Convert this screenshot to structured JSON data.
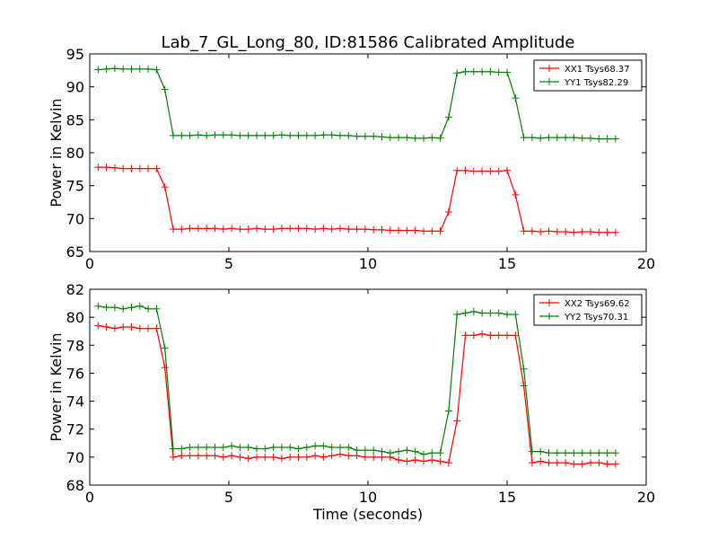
{
  "figure_title": "Lab_7_GL_Long_80, ID:81586 Calibrated Amplitude",
  "colors": {
    "XX": "#ff0000",
    "YY": "#008000",
    "axes": "#000000",
    "background": "#ffffff"
  },
  "chart_data": [
    {
      "type": "line",
      "title": "Lab_7_GL_Long_80, ID:81586 Calibrated Amplitude",
      "xlabel": "",
      "ylabel": "Power in Kelvin",
      "xlim": [
        0,
        20
      ],
      "ylim": [
        65,
        95
      ],
      "xticks": [
        0,
        5,
        10,
        15,
        20
      ],
      "yticks": [
        65,
        70,
        75,
        80,
        85,
        90,
        95
      ],
      "grid": false,
      "legend_position": "top-right",
      "x": [
        0.3,
        0.6,
        0.9,
        1.2,
        1.5,
        1.8,
        2.1,
        2.4,
        2.7,
        3.0,
        3.3,
        3.6,
        3.9,
        4.2,
        4.5,
        4.8,
        5.1,
        5.4,
        5.7,
        6.0,
        6.3,
        6.6,
        6.9,
        7.2,
        7.5,
        7.8,
        8.1,
        8.4,
        8.7,
        9.0,
        9.3,
        9.6,
        9.9,
        10.2,
        10.5,
        10.8,
        11.1,
        11.4,
        11.7,
        12.0,
        12.3,
        12.6,
        12.9,
        13.2,
        13.5,
        13.8,
        14.1,
        14.4,
        14.7,
        15.0,
        15.3,
        15.6,
        15.9,
        16.2,
        16.5,
        16.8,
        17.1,
        17.4,
        17.7,
        18.0,
        18.3,
        18.6,
        18.9
      ],
      "series": [
        {
          "name": "XX1 Tsys68.37",
          "color": "#ff0000",
          "values": [
            77.8,
            77.8,
            77.7,
            77.6,
            77.6,
            77.6,
            77.6,
            77.6,
            74.8,
            68.4,
            68.4,
            68.5,
            68.5,
            68.5,
            68.5,
            68.4,
            68.5,
            68.4,
            68.4,
            68.5,
            68.4,
            68.4,
            68.5,
            68.5,
            68.5,
            68.5,
            68.4,
            68.5,
            68.4,
            68.5,
            68.4,
            68.4,
            68.4,
            68.3,
            68.3,
            68.2,
            68.2,
            68.2,
            68.2,
            68.1,
            68.1,
            68.1,
            71.0,
            77.3,
            77.3,
            77.2,
            77.2,
            77.2,
            77.2,
            77.3,
            73.6,
            68.1,
            68.1,
            68.0,
            68.1,
            68.0,
            68.0,
            67.9,
            68.0,
            68.0,
            67.9,
            67.9,
            67.9
          ]
        },
        {
          "name": "YY1 Tsys82.29",
          "color": "#008000",
          "values": [
            92.6,
            92.7,
            92.8,
            92.7,
            92.7,
            92.7,
            92.7,
            92.6,
            89.6,
            82.6,
            82.6,
            82.6,
            82.7,
            82.6,
            82.7,
            82.7,
            82.7,
            82.6,
            82.6,
            82.6,
            82.6,
            82.6,
            82.7,
            82.6,
            82.6,
            82.6,
            82.6,
            82.7,
            82.7,
            82.6,
            82.6,
            82.5,
            82.5,
            82.5,
            82.4,
            82.3,
            82.3,
            82.3,
            82.2,
            82.2,
            82.3,
            82.2,
            85.4,
            92.1,
            92.3,
            92.3,
            92.3,
            92.3,
            92.2,
            92.2,
            88.3,
            82.3,
            82.3,
            82.2,
            82.3,
            82.3,
            82.3,
            82.3,
            82.2,
            82.2,
            82.1,
            82.1,
            82.1
          ]
        }
      ]
    },
    {
      "type": "line",
      "title": "",
      "xlabel": "Time (seconds)",
      "ylabel": "Power in Kelvin",
      "xlim": [
        0,
        20
      ],
      "ylim": [
        68,
        82
      ],
      "xticks": [
        0,
        5,
        10,
        15,
        20
      ],
      "yticks": [
        68,
        70,
        72,
        74,
        76,
        78,
        80,
        82
      ],
      "grid": false,
      "legend_position": "top-right",
      "x": [
        0.3,
        0.6,
        0.9,
        1.2,
        1.5,
        1.8,
        2.1,
        2.4,
        2.7,
        3.0,
        3.3,
        3.6,
        3.9,
        4.2,
        4.5,
        4.8,
        5.1,
        5.4,
        5.7,
        6.0,
        6.3,
        6.6,
        6.9,
        7.2,
        7.5,
        7.8,
        8.1,
        8.4,
        8.7,
        9.0,
        9.3,
        9.6,
        9.9,
        10.2,
        10.5,
        10.8,
        11.1,
        11.4,
        11.7,
        12.0,
        12.3,
        12.6,
        12.9,
        13.2,
        13.5,
        13.8,
        14.1,
        14.4,
        14.7,
        15.0,
        15.3,
        15.6,
        15.9,
        16.2,
        16.5,
        16.8,
        17.1,
        17.4,
        17.7,
        18.0,
        18.3,
        18.6,
        18.9
      ],
      "series": [
        {
          "name": "XX2 Tsys69.62",
          "color": "#ff0000",
          "values": [
            79.4,
            79.3,
            79.2,
            79.3,
            79.3,
            79.2,
            79.2,
            79.2,
            76.4,
            70.0,
            70.1,
            70.1,
            70.1,
            70.1,
            70.1,
            70.0,
            70.1,
            70.0,
            69.9,
            70.0,
            70.0,
            70.0,
            69.9,
            70.0,
            70.0,
            70.0,
            70.1,
            70.0,
            70.1,
            70.2,
            70.1,
            70.1,
            70.0,
            70.0,
            70.0,
            70.0,
            69.8,
            69.7,
            69.8,
            69.7,
            69.8,
            69.7,
            69.6,
            72.6,
            78.7,
            78.7,
            78.8,
            78.7,
            78.7,
            78.7,
            78.7,
            75.1,
            69.6,
            69.7,
            69.6,
            69.6,
            69.6,
            69.5,
            69.5,
            69.6,
            69.6,
            69.5,
            69.5
          ]
        },
        {
          "name": "YY2 Tsys70.31",
          "color": "#008000",
          "values": [
            80.8,
            80.7,
            80.7,
            80.6,
            80.7,
            80.8,
            80.6,
            80.6,
            77.8,
            70.6,
            70.6,
            70.7,
            70.7,
            70.7,
            70.7,
            70.7,
            70.8,
            70.7,
            70.7,
            70.6,
            70.6,
            70.7,
            70.7,
            70.7,
            70.6,
            70.7,
            70.8,
            70.8,
            70.7,
            70.7,
            70.7,
            70.5,
            70.5,
            70.5,
            70.4,
            70.3,
            70.4,
            70.5,
            70.4,
            70.2,
            70.3,
            70.3,
            73.3,
            80.2,
            80.3,
            80.4,
            80.3,
            80.3,
            80.3,
            80.2,
            80.2,
            76.3,
            70.4,
            70.4,
            70.3,
            70.3,
            70.3,
            70.3,
            70.3,
            70.3,
            70.3,
            70.3,
            70.3
          ]
        }
      ]
    }
  ]
}
